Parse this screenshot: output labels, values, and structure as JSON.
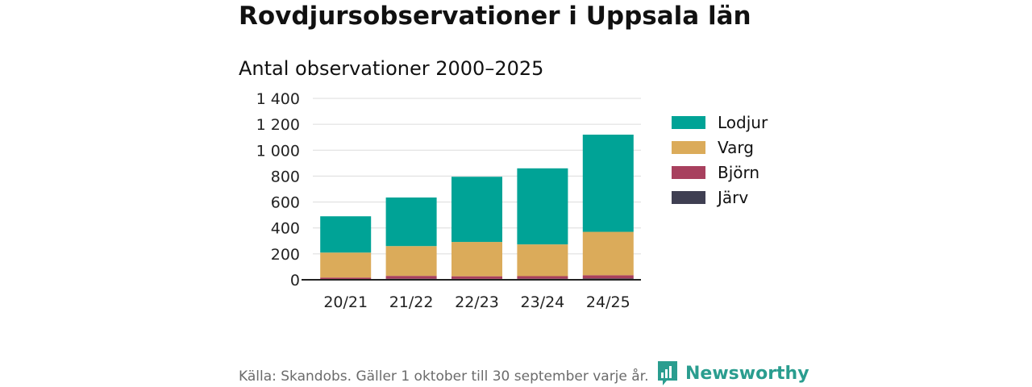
{
  "title": "Rovdjursobservationer i Uppsala län",
  "subtitle": "Antal observationer 2000–2025",
  "source": "Källa: Skandobs. Gäller 1 oktober till 30 september varje år.",
  "brand": {
    "name": "Newsworthy",
    "icon": "newsworthy-logo-icon",
    "color": "#2a9d8f"
  },
  "chart_data": {
    "type": "bar",
    "stacked": true,
    "title": "Antal observationer 2000–2025",
    "xlabel": "",
    "ylabel": "",
    "ylim": [
      0,
      1400
    ],
    "yticks": [
      0,
      200,
      400,
      600,
      800,
      1000,
      1200,
      1400
    ],
    "ytick_labels": [
      "0",
      "200",
      "400",
      "600",
      "800",
      "1 000",
      "1 200",
      "1 400"
    ],
    "grid": true,
    "legend_position": "right",
    "categories": [
      "20/21",
      "21/22",
      "22/23",
      "23/24",
      "24/25"
    ],
    "series": [
      {
        "name": "Järv",
        "color": "#3f3f52",
        "values": [
          5,
          8,
          7,
          8,
          10
        ]
      },
      {
        "name": "Björn",
        "color": "#a8405e",
        "values": [
          12,
          22,
          20,
          20,
          25
        ]
      },
      {
        "name": "Varg",
        "color": "#dbab5a",
        "values": [
          193,
          230,
          265,
          245,
          335
        ]
      },
      {
        "name": "Lodjur",
        "color": "#00a396",
        "values": [
          280,
          375,
          503,
          587,
          750
        ]
      }
    ],
    "legend_order": [
      "Lodjur",
      "Varg",
      "Björn",
      "Järv"
    ]
  }
}
